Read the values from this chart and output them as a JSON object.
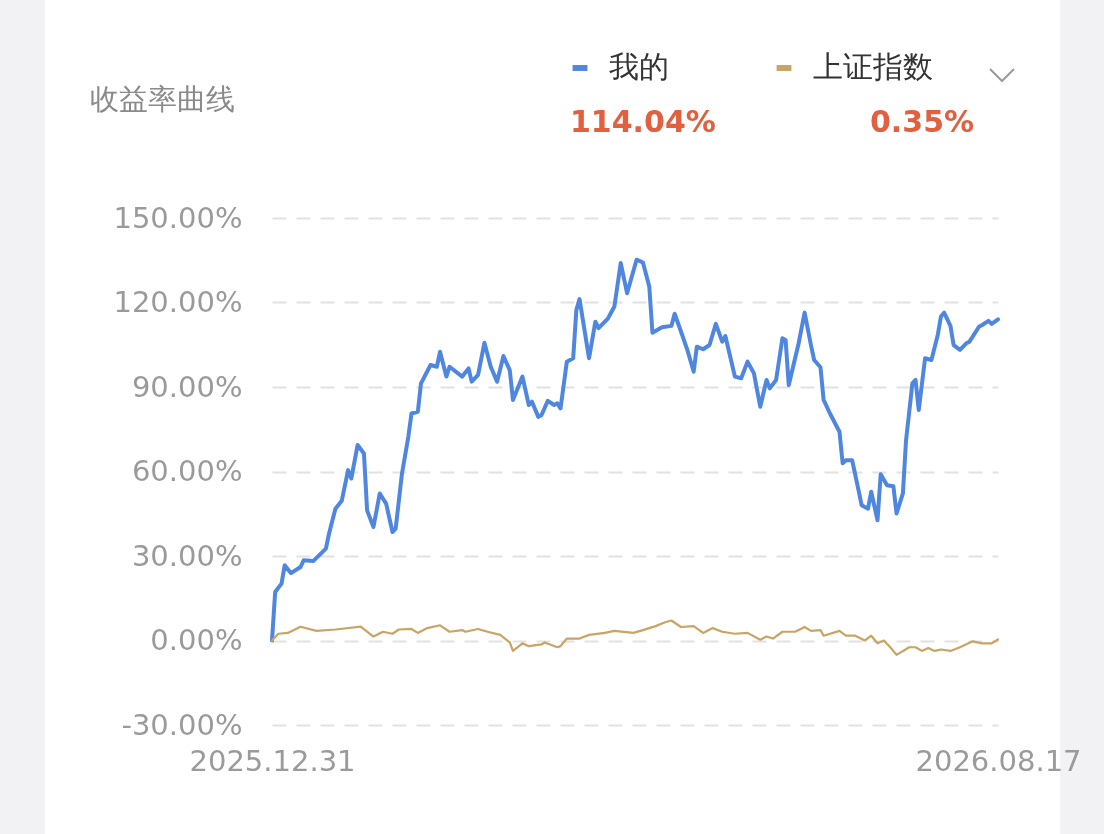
{
  "chart_data": {
    "type": "line",
    "title": "收益率曲线",
    "legend": "top right",
    "grid": "y",
    "line_style": "solid",
    "marker": "none",
    "xlim": [
      "2025-12-31",
      "2026-08-17"
    ],
    "xticks": [
      {
        "value": "2025-12-31",
        "label": "2025.12.31"
      },
      {
        "value": "2026-08-17",
        "label": "2026.08.17"
      }
    ],
    "ylim": [
      -30,
      150
    ],
    "yticks": [
      {
        "value": -30,
        "label": "-30.00%"
      },
      {
        "value": 0,
        "label": "0.00%"
      },
      {
        "value": 30,
        "label": "30.00%"
      },
      {
        "value": 60,
        "label": "60.00%"
      },
      {
        "value": 90,
        "label": "90.00%"
      },
      {
        "value": 120,
        "label": "120.00%"
      },
      {
        "value": 150,
        "label": "150.00%"
      }
    ],
    "annotations": [
      "114.04%",
      "0.35%"
    ],
    "series": [
      {
        "name": "我的",
        "color": "#4f86e0",
        "x": [
          "2025-12-31",
          "2026-01-01",
          "2026-01-03",
          "2026-01-04",
          "2026-01-06",
          "2026-01-09",
          "2026-01-10",
          "2026-01-13",
          "2026-01-17",
          "2026-01-18",
          "2026-01-20",
          "2026-01-22",
          "2026-01-24",
          "2026-01-25",
          "2026-01-27",
          "2026-01-29",
          "2026-01-30",
          "2026-02-01",
          "2026-02-03",
          "2026-02-05",
          "2026-02-07",
          "2026-02-08",
          "2026-02-10",
          "2026-02-12",
          "2026-02-13",
          "2026-02-15",
          "2026-02-16",
          "2026-02-19",
          "2026-02-21",
          "2026-02-22",
          "2026-02-24",
          "2026-02-25",
          "2026-03-01",
          "2026-03-03",
          "2026-03-04",
          "2026-03-06",
          "2026-03-08",
          "2026-03-10",
          "2026-03-12",
          "2026-03-14",
          "2026-03-16",
          "2026-03-17",
          "2026-03-20",
          "2026-03-22",
          "2026-03-23",
          "2026-03-25",
          "2026-03-26",
          "2026-03-28",
          "2026-03-30",
          "2026-03-31",
          "2026-04-01",
          "2026-04-03",
          "2026-04-05",
          "2026-04-06",
          "2026-04-07",
          "2026-04-10",
          "2026-04-12",
          "2026-04-13",
          "2026-04-16",
          "2026-04-18",
          "2026-04-20",
          "2026-04-22",
          "2026-04-25",
          "2026-04-27",
          "2026-04-29",
          "2026-04-30",
          "2026-05-03",
          "2026-05-06",
          "2026-05-07",
          "2026-05-09",
          "2026-05-11",
          "2026-05-13",
          "2026-05-14",
          "2026-05-16",
          "2026-05-18",
          "2026-05-20",
          "2026-05-22",
          "2026-05-23",
          "2026-05-26",
          "2026-05-28",
          "2026-05-30",
          "2026-06-01",
          "2026-06-03",
          "2026-06-05",
          "2026-06-06",
          "2026-06-08",
          "2026-06-10",
          "2026-06-11",
          "2026-06-12",
          "2026-06-15",
          "2026-06-17",
          "2026-06-19",
          "2026-06-20",
          "2026-06-22",
          "2026-06-23",
          "2026-06-25",
          "2026-06-28",
          "2026-06-29",
          "2026-06-30",
          "2026-07-02",
          "2026-07-04",
          "2026-07-05",
          "2026-07-07",
          "2026-07-08",
          "2026-07-10",
          "2026-07-11",
          "2026-07-13",
          "2026-07-15",
          "2026-07-16",
          "2026-07-18",
          "2026-07-19",
          "2026-07-21",
          "2026-07-22",
          "2026-07-23",
          "2026-07-25",
          "2026-07-27",
          "2026-07-29",
          "2026-07-30",
          "2026-07-31",
          "2026-08-02",
          "2026-08-03",
          "2026-08-05",
          "2026-08-07",
          "2026-08-08",
          "2026-08-11",
          "2026-08-12",
          "2026-08-14",
          "2026-08-15",
          "2026-08-17"
        ],
        "values": [
          0,
          17.2,
          20.2,
          26.7,
          23.9,
          26.1,
          28.5,
          28.2,
          32.6,
          38.0,
          46.8,
          49.6,
          60.5,
          57.5,
          69.4,
          66.4,
          46.2,
          40.3,
          52.2,
          48.6,
          38.5,
          39.7,
          59.3,
          72.3,
          80.6,
          81.2,
          91.3,
          97.8,
          97.2,
          102.5,
          93.7,
          97.2,
          93.7,
          96.6,
          91.9,
          94.3,
          105.7,
          97.2,
          91.9,
          101.0,
          96.0,
          85.4,
          93.7,
          83.6,
          84.8,
          79.4,
          80.0,
          85.1,
          83.6,
          84.2,
          82.4,
          99.0,
          100.2,
          117.4,
          121.2,
          100.2,
          113.2,
          110.9,
          114.4,
          118.6,
          134.0,
          123.3,
          135.2,
          134.2,
          125.7,
          109.3,
          111.2,
          111.7,
          116.0,
          109.7,
          103.2,
          95.4,
          104.3,
          103.4,
          104.9,
          112.4,
          106.1,
          108.1,
          93.7,
          93.1,
          99.0,
          94.9,
          83.0,
          92.5,
          89.5,
          92.5,
          107.3,
          106.7,
          90.7,
          104.9,
          116.4,
          104.9,
          99.6,
          97.0,
          85.4,
          80.6,
          74.1,
          62.9,
          64.0,
          64.0,
          53.4,
          48.0,
          46.8,
          52.8,
          42.7,
          59.0,
          55.1,
          54.8,
          45.1,
          52.2,
          71.1,
          91.3,
          92.5,
          81.8,
          100.2,
          99.6,
          108.5,
          115.0,
          116.4,
          111.7,
          104.9,
          103.2,
          105.5,
          106.1,
          111.4,
          112.0,
          113.5,
          112.4,
          114.04
        ]
      },
      {
        "name": "上证指数",
        "color": "#c9a463",
        "x": [
          "2025-12-31",
          "2026-01-02",
          "2026-01-05",
          "2026-01-09",
          "2026-01-14",
          "2026-01-20",
          "2026-01-28",
          "2026-02-01",
          "2026-02-04",
          "2026-02-07",
          "2026-02-09",
          "2026-02-13",
          "2026-02-15",
          "2026-02-18",
          "2026-02-22",
          "2026-02-25",
          "2026-03-01",
          "2026-03-02",
          "2026-03-06",
          "2026-03-09",
          "2026-03-13",
          "2026-03-16",
          "2026-03-17",
          "2026-03-20",
          "2026-03-22",
          "2026-03-26",
          "2026-03-27",
          "2026-03-31",
          "2026-04-01",
          "2026-04-03",
          "2026-04-07",
          "2026-04-10",
          "2026-04-15",
          "2026-04-18",
          "2026-04-24",
          "2026-04-27",
          "2026-05-01",
          "2026-05-04",
          "2026-05-06",
          "2026-05-09",
          "2026-05-13",
          "2026-05-16",
          "2026-05-19",
          "2026-05-22",
          "2026-05-26",
          "2026-05-30",
          "2026-06-03",
          "2026-06-05",
          "2026-06-07",
          "2026-06-10",
          "2026-06-14",
          "2026-06-17",
          "2026-06-19",
          "2026-06-22",
          "2026-06-23",
          "2026-06-28",
          "2026-06-30",
          "2026-07-03",
          "2026-07-06",
          "2026-07-08",
          "2026-07-10",
          "2026-07-12",
          "2026-07-14",
          "2026-07-16",
          "2026-07-20",
          "2026-07-22",
          "2026-07-24",
          "2026-07-26",
          "2026-07-28",
          "2026-07-30",
          "2026-08-02",
          "2026-08-05",
          "2026-08-09",
          "2026-08-12",
          "2026-08-15",
          "2026-08-17"
        ],
        "values": [
          0,
          2.4,
          2.7,
          4.9,
          3.4,
          3.9,
          4.9,
          1.4,
          3.1,
          2.4,
          3.9,
          4.1,
          2.7,
          4.4,
          5.4,
          3.1,
          3.7,
          3.1,
          4.1,
          3.1,
          2.0,
          -0.7,
          -3.7,
          -1.0,
          -2.0,
          -1.4,
          -0.7,
          -2.4,
          -2.0,
          0.7,
          0.7,
          2.0,
          2.7,
          3.4,
          2.7,
          3.7,
          5.1,
          6.5,
          7.1,
          4.8,
          5.1,
          2.7,
          4.4,
          3.1,
          2.4,
          2.7,
          0.3,
          1.4,
          0.7,
          3.1,
          3.1,
          4.8,
          3.4,
          3.7,
          1.7,
          3.4,
          1.7,
          1.7,
          0,
          1.7,
          -1.0,
          0,
          -2.4,
          -5.1,
          -2.4,
          -2.4,
          -3.7,
          -2.7,
          -3.7,
          -3.2,
          -3.7,
          -2.4,
          -0.3,
          -1.0,
          -1.0,
          0.35
        ]
      }
    ]
  }
}
